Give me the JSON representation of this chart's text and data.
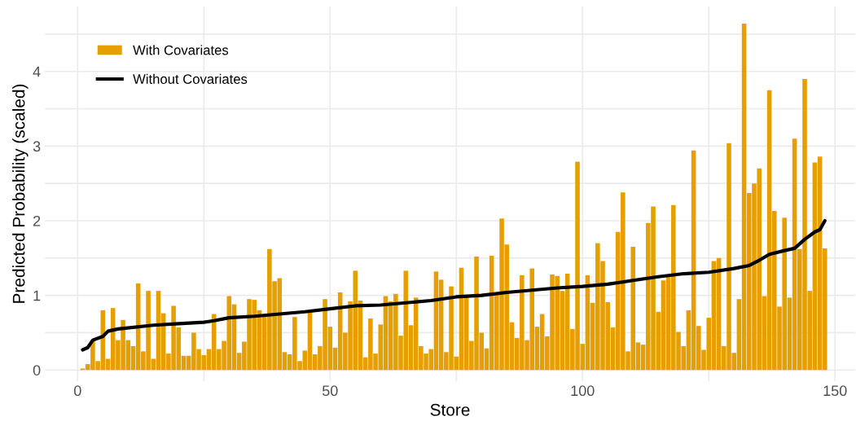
{
  "chart_data": {
    "type": "bar",
    "xlabel": "Store",
    "ylabel": "Predicted Probability (scaled)",
    "x": [
      1,
      2,
      3,
      4,
      5,
      6,
      7,
      8,
      9,
      10,
      11,
      12,
      13,
      14,
      15,
      16,
      17,
      18,
      19,
      20,
      21,
      22,
      23,
      24,
      25,
      26,
      27,
      28,
      29,
      30,
      31,
      32,
      33,
      34,
      35,
      36,
      37,
      38,
      39,
      40,
      41,
      42,
      43,
      44,
      45,
      46,
      47,
      48,
      49,
      50,
      51,
      52,
      53,
      54,
      55,
      56,
      57,
      58,
      59,
      60,
      61,
      62,
      63,
      64,
      65,
      66,
      67,
      68,
      69,
      70,
      71,
      72,
      73,
      74,
      75,
      76,
      77,
      78,
      79,
      80,
      81,
      82,
      83,
      84,
      85,
      86,
      87,
      88,
      89,
      90,
      91,
      92,
      93,
      94,
      95,
      96,
      97,
      98,
      99,
      100,
      101,
      102,
      103,
      104,
      105,
      106,
      107,
      108,
      109,
      110,
      111,
      112,
      113,
      114,
      115,
      116,
      117,
      118,
      119,
      120,
      121,
      122,
      123,
      124,
      125,
      126,
      127,
      128,
      129,
      130,
      131,
      132,
      133,
      134,
      135,
      136,
      137,
      138,
      139,
      140,
      141,
      142,
      143,
      144,
      145,
      146,
      147,
      148
    ],
    "series": [
      {
        "name": "With Covariates",
        "color": "#e69f00",
        "values": [
          0.02,
          0.08,
          0.4,
          0.12,
          0.8,
          0.15,
          0.83,
          0.4,
          0.67,
          0.4,
          0.32,
          1.16,
          0.25,
          1.06,
          0.15,
          1.06,
          0.76,
          0.22,
          0.86,
          0.57,
          0.19,
          0.19,
          0.5,
          0.28,
          0.2,
          0.28,
          0.75,
          0.28,
          0.39,
          0.99,
          0.88,
          0.23,
          0.38,
          0.95,
          0.94,
          0.8,
          0.73,
          1.62,
          1.19,
          1.23,
          0.24,
          0.21,
          0.71,
          0.12,
          0.26,
          0.77,
          0.21,
          0.32,
          0.95,
          0.58,
          0.3,
          1.04,
          0.5,
          0.92,
          1.33,
          0.93,
          0.17,
          0.69,
          0.22,
          0.61,
          0.99,
          0.92,
          1.02,
          0.46,
          1.33,
          0.6,
          0.97,
          0.32,
          0.22,
          0.28,
          1.32,
          1.21,
          0.24,
          1.12,
          0.18,
          1.37,
          0.98,
          0.39,
          1.52,
          0.5,
          0.29,
          1.53,
          1.02,
          2.03,
          1.68,
          0.64,
          0.43,
          1.27,
          0.4,
          1.36,
          0.58,
          0.75,
          0.45,
          1.28,
          1.26,
          1.06,
          1.29,
          0.55,
          2.79,
          0.35,
          1.27,
          0.9,
          1.7,
          1.46,
          0.91,
          0.57,
          1.85,
          2.38,
          0.25,
          1.65,
          0.37,
          0.34,
          1.97,
          2.19,
          0.78,
          1.2,
          1.26,
          2.21,
          0.51,
          0.32,
          0.8,
          2.94,
          0.59,
          0.27,
          0.7,
          1.46,
          1.5,
          0.32,
          3.04,
          0.23,
          0.95,
          4.64,
          2.37,
          2.5,
          2.7,
          0.99,
          3.75,
          2.13,
          0.85,
          2.04,
          0.97,
          3.1,
          1.62,
          3.9,
          1.06,
          2.78,
          2.86,
          1.63
        ]
      },
      {
        "name": "Without Covariates",
        "type": "line",
        "color": "#000000",
        "x": [
          1,
          2,
          3,
          5,
          6,
          8,
          15,
          20,
          25,
          27,
          30,
          35,
          40,
          45,
          50,
          55,
          60,
          65,
          70,
          75,
          80,
          85,
          90,
          95,
          100,
          105,
          110,
          115,
          120,
          125,
          130,
          133,
          135,
          137,
          140,
          142,
          144,
          146,
          147,
          148
        ],
        "values": [
          0.27,
          0.3,
          0.4,
          0.45,
          0.52,
          0.55,
          0.6,
          0.62,
          0.64,
          0.66,
          0.7,
          0.72,
          0.75,
          0.78,
          0.82,
          0.86,
          0.87,
          0.9,
          0.93,
          0.98,
          1.0,
          1.04,
          1.07,
          1.1,
          1.12,
          1.15,
          1.2,
          1.25,
          1.29,
          1.31,
          1.36,
          1.4,
          1.47,
          1.55,
          1.6,
          1.63,
          1.75,
          1.85,
          1.88,
          2.0
        ]
      }
    ],
    "xlim": [
      -6.5,
      154
    ],
    "xticks": [
      0,
      {
        "value": 25,
        "label": null
      },
      50,
      {
        "value": 75,
        "label": null
      },
      100,
      {
        "value": 125,
        "label": null
      },
      150
    ],
    "ylim": [
      -0.15,
      4.87
    ],
    "yticks": [
      0,
      {
        "value": 0.5,
        "label": null
      },
      1,
      {
        "value": 1.5,
        "label": null
      },
      2,
      {
        "value": 2.5,
        "label": null
      },
      3,
      {
        "value": 3.5,
        "label": null
      },
      4,
      {
        "value": 4.5,
        "label": null
      }
    ],
    "grid": true,
    "legend": "top left"
  }
}
